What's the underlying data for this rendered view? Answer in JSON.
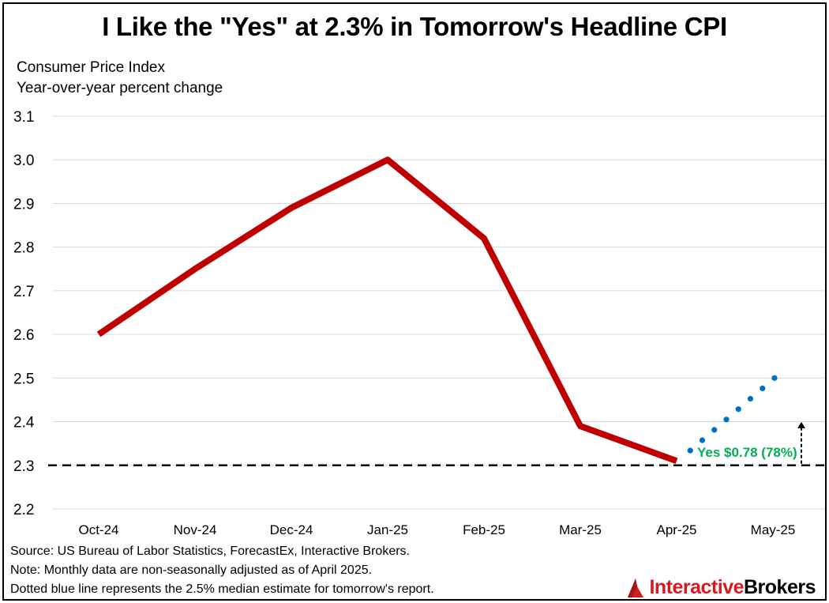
{
  "header": {
    "title": "I Like the \"Yes\" at 2.3% in Tomorrow's Headline CPI",
    "subtitle_line1": "Consumer Price Index",
    "subtitle_line2": "Year-over-year percent change"
  },
  "chart_data": {
    "type": "line",
    "categories": [
      "Oct-24",
      "Nov-24",
      "Dec-24",
      "Jan-25",
      "Feb-25",
      "Mar-25",
      "Apr-25",
      "May-25"
    ],
    "series": [
      {
        "values": [
          2.6,
          2.75,
          2.89,
          3.0,
          2.82,
          2.39,
          2.31,
          null
        ],
        "color": "#c00000",
        "style": "solid"
      },
      {
        "values": [
          null,
          null,
          null,
          null,
          null,
          null,
          2.31,
          2.5
        ],
        "color": "#0070c0",
        "style": "dotted"
      }
    ],
    "reference_line": {
      "value": 2.3,
      "color": "#000000",
      "style": "dashed"
    },
    "annotation": {
      "text": "Yes $0.78 (78%)",
      "color": "#00b050"
    },
    "yticks": [
      "2.2",
      "2.3",
      "2.4",
      "2.5",
      "2.6",
      "2.7",
      "2.8",
      "2.9",
      "3.0",
      "3.1"
    ],
    "ylim": [
      2.2,
      3.1
    ],
    "grid": true
  },
  "footer": {
    "source": "Source: US Bureau of Labor Statistics, ForecastEx, Interactive Brokers.",
    "note": "Note: Monthly data are non-seasonally adjusted as of April 2025.",
    "dotted_note": "Dotted blue line represents the 2.5% median estimate for tomorrow's report."
  },
  "logo": {
    "part1": "Interactive",
    "part2": "Brokers",
    "icon": "interactive-brokers-logo-icon"
  }
}
